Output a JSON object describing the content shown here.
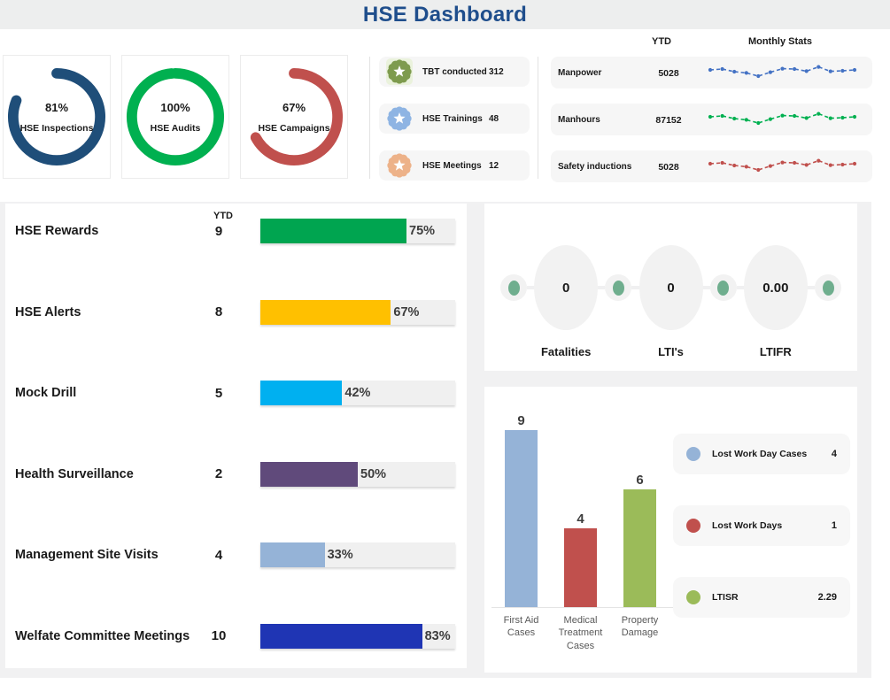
{
  "title": "HSE Dashboard",
  "headers": {
    "ytd_top": "YTD",
    "monthly_stats": "Monthly Stats",
    "ytd_left": "YTD"
  },
  "badges": {
    "rows": [
      {
        "label": "TBT conducted",
        "value": "312",
        "color": "#7E9B4E",
        "highlight": "#EAF2DC"
      },
      {
        "label": "HSE Trainings",
        "value": "48",
        "color": "#8EB4E3",
        "highlight": ""
      },
      {
        "label": "HSE Meetings",
        "value": "12",
        "color": "#EDB289",
        "highlight": ""
      }
    ]
  },
  "colors": {
    "title": "#1F4E8C",
    "dashboard_bg": "#F1F1F2",
    "row_bg": "#F6F6F6",
    "bar_track": "#F0F0F0",
    "kpi_dot": "#6FAE8E"
  },
  "chart_data": [
    {
      "id": "completion-gauges",
      "type": "pie",
      "title": "HSE completion gauges",
      "unit": "%",
      "series": [
        {
          "name": "HSE Inspections",
          "value": 81,
          "color": "#1F4E79"
        },
        {
          "name": "HSE Audits",
          "value": 100,
          "color": "#00B050"
        },
        {
          "name": "HSE Campaigns",
          "value": 67,
          "color": "#C0504D"
        }
      ]
    },
    {
      "id": "monthly-stats",
      "type": "line",
      "title": "Monthly Stats",
      "style": "dashed-with-markers",
      "x_axis": "months (unlabeled)",
      "legend_position": "none",
      "series": [
        {
          "name": "Manpower",
          "ytd": "5028",
          "color": "#4472C4",
          "values": [
            55,
            60,
            45,
            38,
            20,
            42,
            62,
            60,
            48,
            72,
            47,
            50,
            55
          ]
        },
        {
          "name": "Manhours",
          "ytd": "87152",
          "color": "#00B050",
          "values": [
            55,
            60,
            45,
            38,
            20,
            42,
            62,
            60,
            48,
            72,
            47,
            50,
            55
          ]
        },
        {
          "name": "Safety inductions",
          "ytd": "5028",
          "color": "#C0504D",
          "values": [
            55,
            60,
            45,
            38,
            20,
            42,
            62,
            60,
            48,
            72,
            47,
            50,
            55
          ]
        }
      ]
    },
    {
      "id": "ytd-progress-bars",
      "type": "bar",
      "orientation": "horizontal",
      "title": "YTD activity completion",
      "xlim": [
        0,
        100
      ],
      "unit": "%",
      "rows": [
        {
          "label": "HSE Rewards",
          "ytd": "9",
          "percent": 75,
          "color": "#00A550"
        },
        {
          "label": "HSE Alerts",
          "ytd": "8",
          "percent": 67,
          "color": "#FFC000"
        },
        {
          "label": "Mock Drill",
          "ytd": "5",
          "percent": 42,
          "color": "#00B0F0"
        },
        {
          "label": "Health Surveillance",
          "ytd": "2",
          "percent": 50,
          "color": "#604A7B"
        },
        {
          "label": "Management Site Visits",
          "ytd": "4",
          "percent": 33,
          "color": "#95B3D7"
        },
        {
          "label": "Welfate Committee Meetings",
          "ytd": "10",
          "percent": 83,
          "color": "#1F35B4"
        }
      ]
    },
    {
      "id": "kpi-chain",
      "type": "table",
      "title": "Lagging indicators",
      "items": [
        {
          "label": "Fatalities",
          "value": "0"
        },
        {
          "label": "LTI's",
          "value": "0"
        },
        {
          "label": "LTIFR",
          "value": "0.00"
        }
      ]
    },
    {
      "id": "incident-columns",
      "type": "bar",
      "orientation": "vertical",
      "ylim": [
        0,
        9
      ],
      "categories": [
        "First Aid Cases",
        "Medical Treatment Cases",
        "Property Damage"
      ],
      "values": [
        9,
        4,
        6
      ],
      "colors": [
        "#95B3D7",
        "#C0504D",
        "#9BBB59"
      ]
    },
    {
      "id": "incident-legend",
      "type": "table",
      "rows": [
        {
          "label": "Lost Work Day Cases",
          "value": "4",
          "color": "#95B3D7"
        },
        {
          "label": "Lost Work Days",
          "value": "1",
          "color": "#C0504D"
        },
        {
          "label": "LTISR",
          "value": "2.29",
          "color": "#9BBB59"
        }
      ]
    }
  ]
}
